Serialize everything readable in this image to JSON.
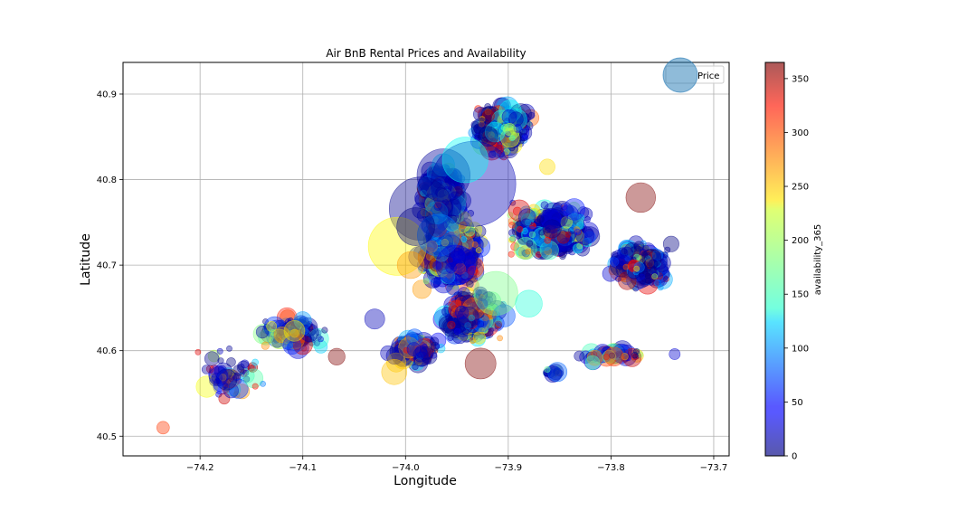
{
  "chart_data": {
    "type": "scatter",
    "title": "Air BnB Rental Prices and Availability",
    "xlabel": "Longitude",
    "ylabel": "Latitude",
    "xlim": [
      -74.275,
      -73.685
    ],
    "ylim": [
      40.477,
      40.937
    ],
    "xticks": [
      -74.2,
      -74.1,
      -74.0,
      -73.9,
      -73.8,
      -73.7
    ],
    "xtick_labels": [
      "−74.2",
      "−74.1",
      "−74.0",
      "−73.9",
      "−73.8",
      "−73.7"
    ],
    "yticks": [
      40.5,
      40.6,
      40.7,
      40.8,
      40.9
    ],
    "ytick_labels": [
      "40.5",
      "40.6",
      "40.7",
      "40.8",
      "40.9"
    ],
    "grid": true,
    "legend": {
      "placement": "top-right",
      "entries": [
        {
          "label": "Price",
          "color": "#1f77b4"
        }
      ]
    },
    "colorbar": {
      "label": "availability_365",
      "range": [
        0,
        365
      ],
      "ticks": [
        0,
        50,
        100,
        150,
        200,
        250,
        300,
        350
      ],
      "tick_labels": [
        "0",
        "50",
        "100",
        "150",
        "200",
        "250",
        "300",
        "350"
      ],
      "colormap": "jet"
    },
    "size_encodes": "price",
    "color_encodes": "availability_365",
    "alpha": 0.4,
    "points": [
      {
        "lon": -73.934,
        "lat": 40.795,
        "avail": 20,
        "price": 9000
      },
      {
        "lon": -73.985,
        "lat": 40.766,
        "avail": 5,
        "price": 5000
      },
      {
        "lon": -74.008,
        "lat": 40.722,
        "avail": 230,
        "price": 4200
      },
      {
        "lon": -73.963,
        "lat": 40.805,
        "avail": 10,
        "price": 3500
      },
      {
        "lon": -73.942,
        "lat": 40.823,
        "avail": 140,
        "price": 2600
      },
      {
        "lon": -73.912,
        "lat": 40.667,
        "avail": 180,
        "price": 2400
      },
      {
        "lon": -73.968,
        "lat": 40.735,
        "avail": 90,
        "price": 2200
      },
      {
        "lon": -73.927,
        "lat": 40.585,
        "avail": 365,
        "price": 1200
      },
      {
        "lon": -73.771,
        "lat": 40.779,
        "avail": 365,
        "price": 1100
      },
      {
        "lon": -74.011,
        "lat": 40.575,
        "avail": 250,
        "price": 800
      },
      {
        "lon": -73.951,
        "lat": 40.7,
        "avail": 40,
        "price": 2000
      },
      {
        "lon": -73.99,
        "lat": 40.745,
        "avail": 0,
        "price": 1800
      },
      {
        "lon": -73.995,
        "lat": 40.7,
        "avail": 265,
        "price": 900
      },
      {
        "lon": -74.03,
        "lat": 40.637,
        "avail": 20,
        "price": 500
      },
      {
        "lon": -73.88,
        "lat": 40.655,
        "avail": 150,
        "price": 900
      },
      {
        "lon": -73.797,
        "lat": 40.593,
        "avail": 300,
        "price": 450
      },
      {
        "lon": -74.067,
        "lat": 40.593,
        "avail": 365,
        "price": 350
      },
      {
        "lon": -74.236,
        "lat": 40.51,
        "avail": 300,
        "price": 200
      },
      {
        "lon": -73.738,
        "lat": 40.596,
        "avail": 30,
        "price": 150
      },
      {
        "lon": -73.862,
        "lat": 40.815,
        "avail": 240,
        "price": 300
      },
      {
        "lon": -73.818,
        "lat": 40.586,
        "avail": 160,
        "price": 250
      }
    ]
  }
}
